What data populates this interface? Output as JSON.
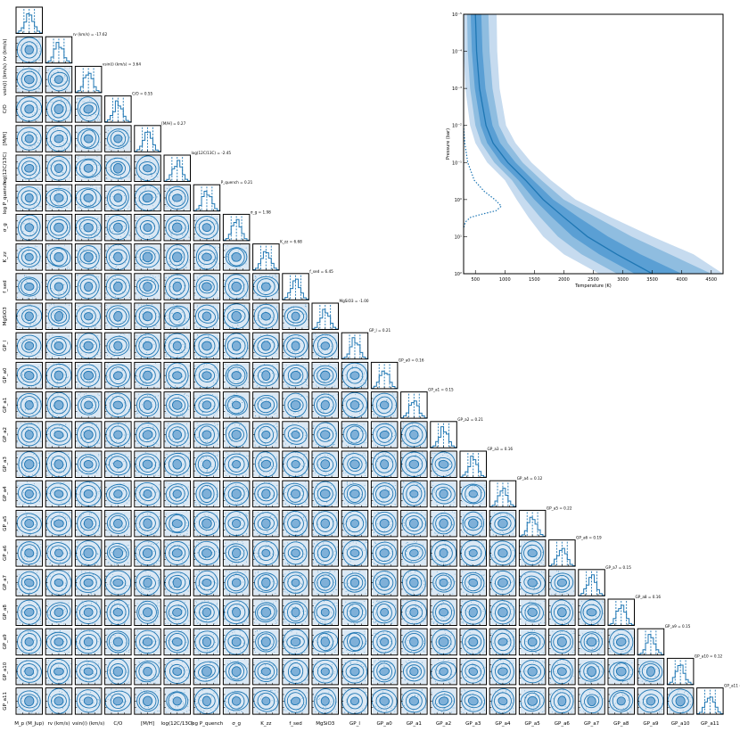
{
  "chart_data": [
    {
      "type": "corner",
      "color": "#1f77b4",
      "parameters": [
        {
          "name": "M_p",
          "label": "M_p (M_Jup)",
          "title": ""
        },
        {
          "name": "rv",
          "label": "rv (km/s)",
          "title": "rv (km/s) = -17.62"
        },
        {
          "name": "vsini",
          "label": "vsin(i) (km/s)",
          "title": "vsin(i) (km/s) = 3.64"
        },
        {
          "name": "C/O",
          "label": "C/O",
          "title": "C/O = 0.55"
        },
        {
          "name": "[M/H]",
          "label": "[M/H]",
          "title": "[M/H] = 0.27"
        },
        {
          "name": "log12C13C",
          "label": "log(12C/13C)",
          "title": "log(12C/13C) = -2.45"
        },
        {
          "name": "P_quench",
          "label": "log P_quench",
          "title": "P_quench = 0.21"
        },
        {
          "name": "sigma_g",
          "label": "σ_g",
          "title": "σ_g = 1.98"
        },
        {
          "name": "K_zz",
          "label": "K_zz",
          "title": "K_zz = 6.68"
        },
        {
          "name": "f_sed",
          "label": "f_sed",
          "title": "f_sed = 6.45"
        },
        {
          "name": "MgSiO3",
          "label": "MgSiO3",
          "title": "MgSiO3 = -1.00"
        },
        {
          "name": "GP_l",
          "label": "GP_l",
          "title": "GP_l = 0.21"
        },
        {
          "name": "GP_a0",
          "label": "GP_a0",
          "title": "GP_a0 = 0.16"
        },
        {
          "name": "GP_a1",
          "label": "GP_a1",
          "title": "GP_a1 = 0.15"
        },
        {
          "name": "GP_a2",
          "label": "GP_a2",
          "title": "GP_a2 = 0.21"
        },
        {
          "name": "GP_a3",
          "label": "GP_a3",
          "title": "GP_a3 = 0.16"
        },
        {
          "name": "GP_a4",
          "label": "GP_a4",
          "title": "GP_a4 = 0.12"
        },
        {
          "name": "GP_a5",
          "label": "GP_a5",
          "title": "GP_a5 = 0.22"
        },
        {
          "name": "GP_a6",
          "label": "GP_a6",
          "title": "GP_a6 = 0.19"
        },
        {
          "name": "GP_a7",
          "label": "GP_a7",
          "title": "GP_a7 = 0.15"
        },
        {
          "name": "GP_a8",
          "label": "GP_a8",
          "title": "GP_a8 = 0.16"
        },
        {
          "name": "GP_a9",
          "label": "GP_a9",
          "title": "GP_a9 = 0.15"
        },
        {
          "name": "GP_a10",
          "label": "GP_a10",
          "title": "GP_a10 = 0.12"
        },
        {
          "name": "GP_a11",
          "label": "GP_a11",
          "title": "GP_a11 = 0.15"
        }
      ]
    },
    {
      "type": "area",
      "xlabel": "Temperature (K)",
      "ylabel": "Pressure (bar)",
      "xlim": [
        300,
        4700
      ],
      "ylim": [
        100,
        1e-05
      ],
      "yscale": "log",
      "x_ticks": [
        500,
        1000,
        1500,
        2000,
        2500,
        3000,
        3500,
        4000,
        4500
      ],
      "y_ticks": [
        {
          "value": 1e-05,
          "label": "10⁻⁵"
        },
        {
          "value": 0.0001,
          "label": "10⁻⁴"
        },
        {
          "value": 0.001,
          "label": "10⁻³"
        },
        {
          "value": 0.01,
          "label": "10⁻²"
        },
        {
          "value": 0.1,
          "label": "10⁻¹"
        },
        {
          "value": 1,
          "label": "10⁰"
        },
        {
          "value": 10,
          "label": "10¹"
        },
        {
          "value": 100,
          "label": "10²"
        }
      ],
      "pressure": [
        1e-05,
        0.0001,
        0.001,
        0.01,
        0.03,
        0.1,
        0.3,
        1,
        3,
        10,
        30,
        100
      ],
      "median": [
        500,
        520,
        570,
        680,
        800,
        1050,
        1350,
        1650,
        2000,
        2400,
        2900,
        3500
      ],
      "band_1sigma_low": [
        420,
        440,
        490,
        590,
        700,
        930,
        1230,
        1500,
        1800,
        2150,
        2600,
        3200
      ],
      "band_1sigma_high": [
        600,
        620,
        670,
        790,
        920,
        1180,
        1480,
        1820,
        2250,
        2750,
        3300,
        4000
      ],
      "band_2sigma_low": [
        360,
        370,
        410,
        500,
        600,
        820,
        1120,
        1350,
        1600,
        1900,
        2300,
        2900
      ],
      "band_2sigma_high": [
        720,
        740,
        790,
        900,
        1050,
        1300,
        1620,
        2000,
        2550,
        3150,
        3800,
        4500
      ],
      "band_3sigma_low": [
        300,
        300,
        330,
        410,
        500,
        700,
        1000,
        1200,
        1400,
        1650,
        2000,
        2600
      ],
      "band_3sigma_high": [
        860,
        870,
        910,
        1020,
        1180,
        1450,
        1780,
        2200,
        2800,
        3500,
        4200,
        4700
      ],
      "contribution_function": {
        "pressure": [
          0.01,
          0.03,
          0.1,
          0.3,
          0.6,
          1,
          1.5,
          2,
          2.5,
          3,
          4,
          6
        ],
        "x": [
          300,
          320,
          370,
          480,
          650,
          830,
          940,
          850,
          600,
          420,
          330,
          300
        ]
      }
    }
  ]
}
